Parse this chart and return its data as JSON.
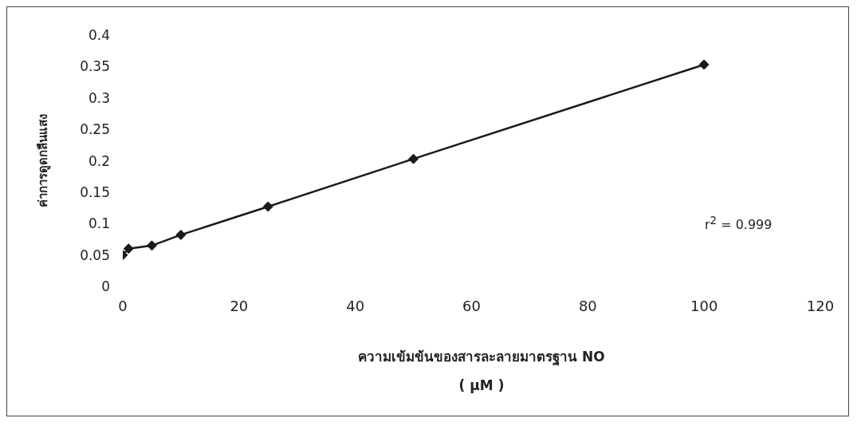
{
  "chart_data": {
    "type": "line",
    "xlabel": "ความเข้มข้นของสารละลายมาตรฐาน NO\n( μM )",
    "ylabel": "ค่าการดูดกลืนแสง",
    "x": [
      0,
      1,
      5,
      10,
      25,
      50,
      100
    ],
    "series": [
      {
        "color": "#1a1a1a",
        "values": [
          0.05,
          0.06,
          0.065,
          0.082,
          0.127,
          0.203,
          0.353
        ]
      }
    ],
    "xlim": [
      0,
      120
    ],
    "xticks": [
      0,
      20,
      40,
      60,
      80,
      100,
      120
    ],
    "ylim": [
      0,
      0.4
    ],
    "yticks": [
      0,
      0.05,
      0.1,
      0.15,
      0.2,
      0.25,
      0.3,
      0.35,
      0.4
    ],
    "grid": false,
    "legend": false,
    "marker": "diamond",
    "line_style": "solid",
    "annotations": [
      "r$^{2}$ = 0.999"
    ]
  }
}
